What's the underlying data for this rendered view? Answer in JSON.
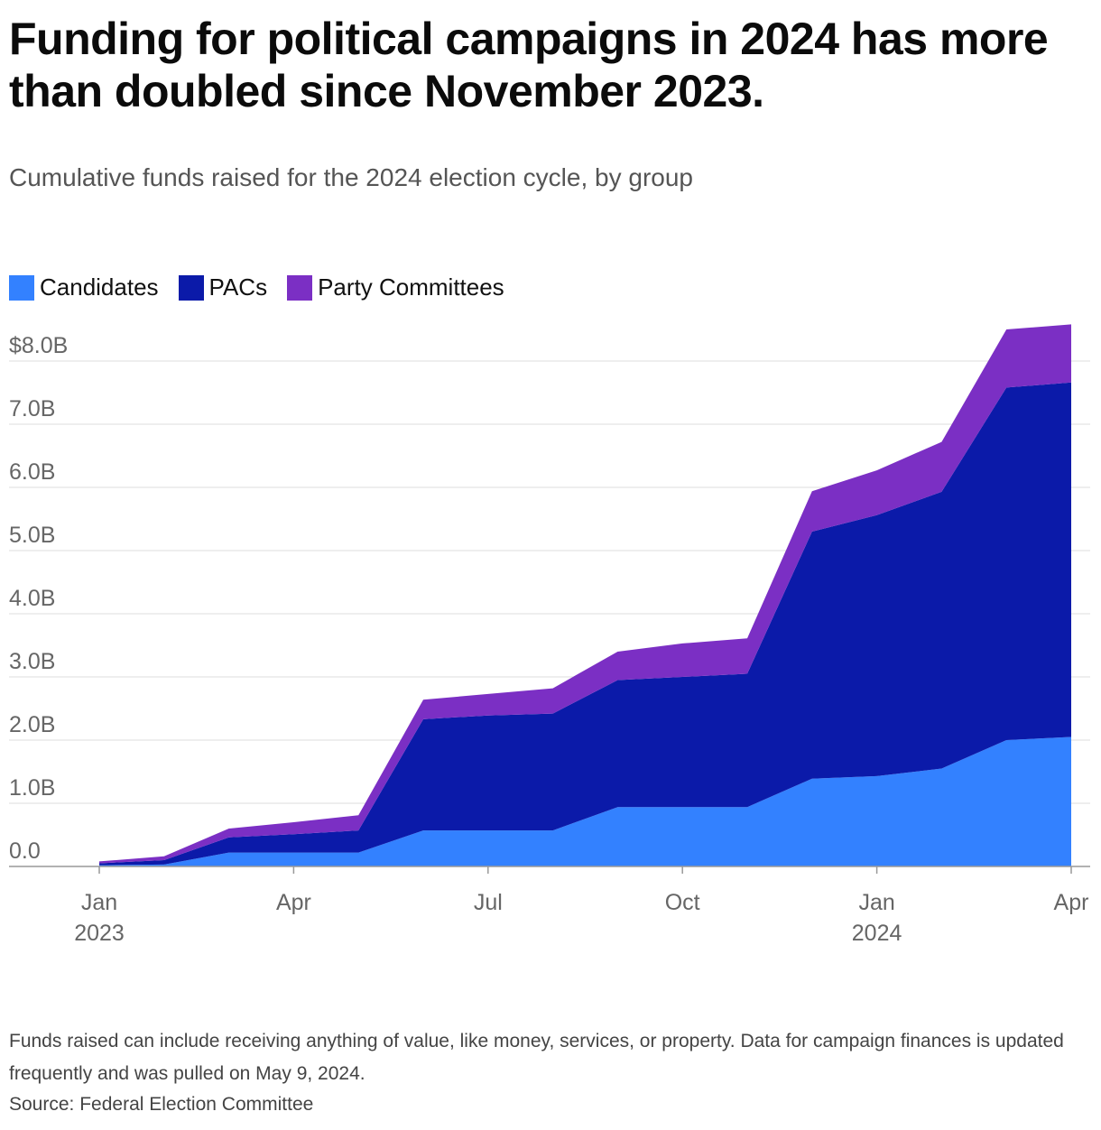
{
  "title": "Funding for political campaigns in 2024 has more than doubled since November 2023.",
  "subtitle": "Cumulative funds raised for the 2024 election cycle, by group",
  "legend": [
    {
      "label": "Candidates",
      "color": "#3381ff"
    },
    {
      "label": "PACs",
      "color": "#0b1aa9"
    },
    {
      "label": "Party Committees",
      "color": "#7b2fc4"
    }
  ],
  "footnote": "Funds raised can include receiving anything of value, like money, services, or property. Data for campaign finances is updated frequently and was pulled on May 9, 2024.",
  "source": "Source: Federal Election Committee",
  "chart_data": {
    "type": "area",
    "stacked": true,
    "x": [
      "2023-01",
      "2023-02",
      "2023-03",
      "2023-04",
      "2023-05",
      "2023-06",
      "2023-07",
      "2023-08",
      "2023-09",
      "2023-10",
      "2023-11",
      "2023-12",
      "2024-01",
      "2024-02",
      "2024-03",
      "2024-04"
    ],
    "series": [
      {
        "name": "Candidates",
        "color": "#3381ff",
        "values": [
          0.02,
          0.03,
          0.22,
          0.22,
          0.22,
          0.57,
          0.57,
          0.57,
          0.94,
          0.94,
          0.94,
          1.39,
          1.43,
          1.55,
          2.0,
          2.05
        ]
      },
      {
        "name": "PACs",
        "color": "#0b1aa9",
        "values": [
          0.03,
          0.07,
          0.24,
          0.29,
          0.35,
          1.76,
          1.82,
          1.85,
          2.01,
          2.06,
          2.11,
          3.91,
          4.13,
          4.38,
          5.58,
          5.61
        ]
      },
      {
        "name": "Party Committees",
        "color": "#7b2fc4",
        "values": [
          0.03,
          0.06,
          0.14,
          0.19,
          0.24,
          0.31,
          0.34,
          0.4,
          0.45,
          0.53,
          0.56,
          0.64,
          0.71,
          0.79,
          0.92,
          0.92
        ]
      }
    ],
    "ylim": [
      0,
      8.5
    ],
    "yticks": [
      0,
      1,
      2,
      3,
      4,
      5,
      6,
      7,
      8
    ],
    "ytick_labels": [
      "0.0",
      "1.0B",
      "2.0B",
      "3.0B",
      "4.0B",
      "5.0B",
      "6.0B",
      "7.0B",
      "$8.0B"
    ],
    "xticks": [
      {
        "x": "2023-01",
        "label": "Jan",
        "sublabel": "2023"
      },
      {
        "x": "2023-04",
        "label": "Apr",
        "sublabel": ""
      },
      {
        "x": "2023-07",
        "label": "Jul",
        "sublabel": ""
      },
      {
        "x": "2023-10",
        "label": "Oct",
        "sublabel": ""
      },
      {
        "x": "2024-01",
        "label": "Jan",
        "sublabel": "2024"
      },
      {
        "x": "2024-04",
        "label": "Apr",
        "sublabel": ""
      }
    ],
    "grid": true,
    "legend_position": "top-left"
  }
}
